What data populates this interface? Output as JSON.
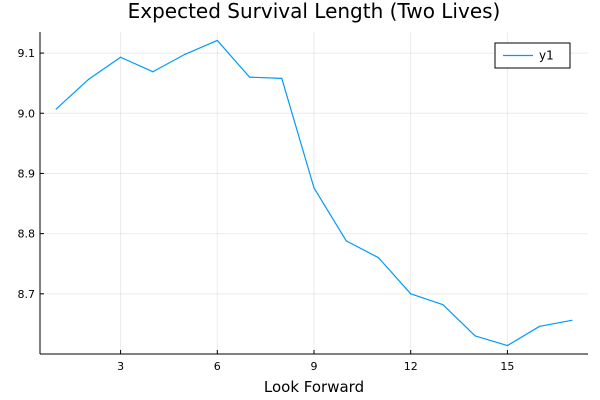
{
  "chart_data": {
    "type": "line",
    "title": "Expected Survival Length (Two Lives)",
    "xlabel": "Look Forward",
    "ylabel": "",
    "xlim": [
      0.5,
      17.5
    ],
    "ylim": [
      8.6,
      9.135
    ],
    "xticks": [
      3,
      6,
      9,
      12,
      15
    ],
    "xtick_labels": [
      "3",
      "6",
      "9",
      "12",
      "15"
    ],
    "yticks": [
      8.7,
      8.8,
      8.9,
      9.0,
      9.1
    ],
    "ytick_labels": [
      "8.7",
      "8.8",
      "8.9",
      "9.0",
      "9.1"
    ],
    "grid": true,
    "legend_position": "top-right",
    "series": [
      {
        "name": "y1",
        "color": "#009af9",
        "x": [
          1,
          2,
          3,
          4,
          5,
          6,
          7,
          8,
          9,
          10,
          11,
          12,
          13,
          14,
          15,
          16,
          17
        ],
        "y": [
          9.007,
          9.056,
          9.093,
          9.069,
          9.098,
          9.121,
          9.06,
          9.058,
          8.876,
          8.788,
          8.76,
          8.7,
          8.682,
          8.63,
          8.614,
          8.646,
          8.656
        ]
      }
    ]
  }
}
